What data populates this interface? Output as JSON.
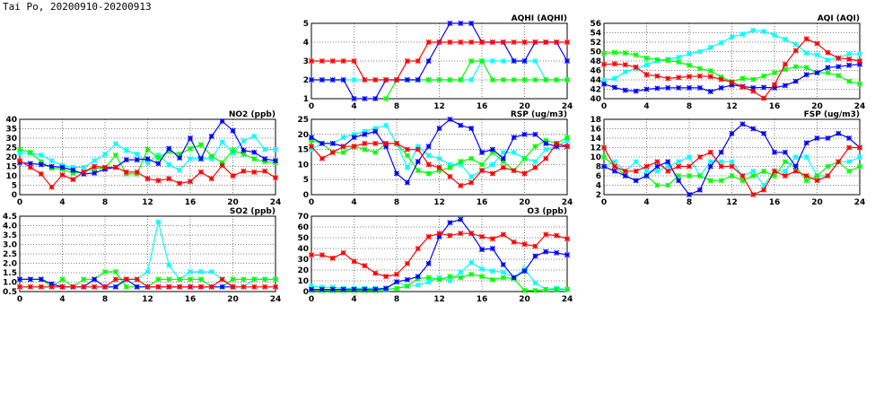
{
  "page_title": "Tai Po, 20200910-20200913",
  "colors": {
    "red": "#ff0000",
    "blue": "#0000ff",
    "green": "#00ff00",
    "cyan": "#00ffff"
  },
  "chart_data": [
    {
      "id": "aqhi",
      "type": "line",
      "title": "AQHI (AQHI)",
      "xlim": [
        0,
        24
      ],
      "xticks": [
        0,
        4,
        8,
        12,
        16,
        20,
        24
      ],
      "ylim": [
        1,
        5
      ],
      "yticks": [
        1,
        2,
        3,
        4,
        5
      ],
      "grid": true,
      "series": [
        {
          "color": "cyan",
          "values": [
            2,
            2,
            2,
            2,
            2,
            2,
            2,
            2,
            2,
            2,
            2,
            2,
            2,
            2,
            2,
            2,
            3,
            3,
            3,
            3,
            3,
            3,
            2,
            2,
            2
          ]
        },
        {
          "color": "green",
          "values": [
            null,
            null,
            null,
            null,
            null,
            null,
            null,
            1,
            2,
            2,
            2,
            2,
            2,
            2,
            2,
            3,
            3,
            2,
            2,
            2,
            2,
            2,
            2,
            2,
            2
          ]
        },
        {
          "color": "blue",
          "values": [
            2,
            2,
            2,
            2,
            1,
            1,
            1,
            2,
            2,
            2,
            2,
            3,
            4,
            5,
            5,
            5,
            4,
            4,
            4,
            3,
            3,
            4,
            4,
            4,
            3
          ]
        },
        {
          "color": "red",
          "values": [
            3,
            3,
            3,
            3,
            3,
            2,
            2,
            2,
            2,
            3,
            3,
            4,
            4,
            4,
            4,
            4,
            4,
            4,
            4,
            4,
            4,
            4,
            4,
            4,
            4
          ]
        }
      ]
    },
    {
      "id": "aqi",
      "type": "line",
      "title": "AQI (AQI)",
      "xlim": [
        0,
        24
      ],
      "xticks": [
        0,
        4,
        8,
        12,
        16,
        20,
        24
      ],
      "ylim": [
        40,
        56
      ],
      "yticks": [
        40,
        42,
        44,
        46,
        48,
        50,
        52,
        54,
        56
      ],
      "grid": true,
      "series": [
        {
          "color": "cyan",
          "values": [
            43.9,
            44.3,
            45.7,
            46.4,
            47.2,
            48.0,
            48.4,
            48.8,
            49.5,
            50.0,
            50.9,
            51.9,
            53.1,
            53.7,
            54.5,
            54.3,
            53.5,
            52.6,
            51.5,
            49.7,
            49.3,
            48.2,
            48.7,
            49.5,
            49.5
          ]
        },
        {
          "color": "green",
          "values": [
            49.6,
            49.8,
            49.7,
            49.3,
            48.6,
            48.3,
            48.1,
            47.8,
            47.1,
            46.4,
            45.9,
            44.6,
            43.6,
            44.3,
            44.1,
            44.8,
            45.5,
            46.2,
            46.8,
            46.6,
            45.5,
            45.5,
            44.9,
            43.7,
            43.1
          ]
        },
        {
          "color": "blue",
          "values": [
            43.1,
            42.4,
            41.8,
            41.6,
            42.0,
            42.2,
            42.3,
            42.3,
            42.3,
            42.3,
            41.5,
            42.3,
            42.9,
            42.6,
            42.3,
            42.4,
            42.3,
            42.8,
            43.7,
            45.1,
            45.5,
            46.6,
            46.8,
            47.1,
            47.3
          ]
        },
        {
          "color": "red",
          "values": [
            47.3,
            47.4,
            47.2,
            46.7,
            45.1,
            44.8,
            44.3,
            44.5,
            44.7,
            44.8,
            44.7,
            44.1,
            43.5,
            42.5,
            41.6,
            40.1,
            43.0,
            47.3,
            50.2,
            52.7,
            51.7,
            49.8,
            48.6,
            48.4,
            48.0
          ]
        }
      ]
    },
    {
      "id": "no2",
      "type": "line",
      "title": "NO2 (ppb)",
      "xlim": [
        0,
        24
      ],
      "xticks": [
        0,
        4,
        8,
        12,
        16,
        20,
        24
      ],
      "ylim": [
        0,
        40
      ],
      "yticks": [
        0,
        5,
        10,
        15,
        20,
        25,
        30,
        35,
        40
      ],
      "grid": true,
      "series": [
        {
          "color": "cyan",
          "values": [
            22,
            22,
            21,
            18,
            15.5,
            14.5,
            14.5,
            18,
            21.5,
            27,
            23.5,
            21.5,
            17,
            21,
            16,
            13,
            19,
            19.5,
            19,
            28,
            22,
            28.5,
            31,
            24,
            24
          ]
        },
        {
          "color": "green",
          "values": [
            24,
            22.5,
            17.5,
            14,
            13.5,
            11.5,
            12,
            14,
            14,
            21,
            11,
            11,
            24,
            19.5,
            23,
            21.5,
            24.5,
            26.5,
            20.5,
            17,
            23.5,
            21.5,
            19,
            17.5,
            17
          ]
        },
        {
          "color": "blue",
          "values": [
            17,
            16.5,
            16,
            15,
            14.5,
            13,
            11,
            11.5,
            13.5,
            14.5,
            18.5,
            18.5,
            19,
            16.5,
            24.5,
            19.5,
            30,
            19,
            31,
            39,
            34,
            23.5,
            22.5,
            19,
            18
          ]
        },
        {
          "color": "red",
          "values": [
            18,
            14.5,
            11,
            4,
            10.5,
            8,
            12,
            15,
            14.5,
            14.5,
            12,
            12,
            8.5,
            7.5,
            8.5,
            6,
            7,
            12,
            8.5,
            15.5,
            10,
            12.5,
            12,
            12.5,
            9
          ]
        }
      ]
    },
    {
      "id": "rsp",
      "type": "line",
      "title": "RSP (ug/m3)",
      "xlim": [
        0,
        24
      ],
      "xticks": [
        0,
        4,
        8,
        12,
        16,
        20,
        24
      ],
      "ylim": [
        0,
        25
      ],
      "yticks": [
        0,
        5,
        10,
        15,
        20,
        25
      ],
      "grid": true,
      "series": [
        {
          "color": "cyan",
          "values": [
            15,
            17,
            17,
            19,
            20,
            21,
            22,
            23,
            17,
            9,
            16,
            13,
            12,
            10,
            10,
            6,
            8,
            10,
            14,
            14,
            12,
            11,
            15,
            16,
            18
          ]
        },
        {
          "color": "green",
          "values": [
            18,
            17,
            14,
            14,
            16,
            15,
            14,
            17,
            17,
            13,
            8,
            7,
            8,
            9,
            11,
            12,
            10,
            14,
            11,
            8,
            12,
            16,
            18,
            17,
            19
          ]
        },
        {
          "color": "blue",
          "values": [
            19,
            17,
            17,
            16,
            19,
            20,
            21,
            16,
            7,
            4,
            11,
            16,
            22,
            25,
            23,
            22,
            14,
            15,
            12,
            19,
            20,
            20,
            17,
            16,
            16
          ]
        },
        {
          "color": "red",
          "values": [
            16,
            12,
            14,
            16,
            16,
            17,
            17,
            17,
            17,
            15,
            15,
            10,
            9,
            6,
            3,
            4,
            8,
            7,
            9,
            8,
            7,
            9,
            12,
            17,
            16
          ]
        }
      ]
    },
    {
      "id": "fsp",
      "type": "line",
      "title": "FSP (ug/m3)",
      "xlim": [
        0,
        24
      ],
      "xticks": [
        0,
        4,
        8,
        12,
        16,
        20,
        24
      ],
      "ylim": [
        2,
        18
      ],
      "yticks": [
        2,
        4,
        6,
        8,
        10,
        12,
        14,
        16,
        18
      ],
      "grid": true,
      "series": [
        {
          "color": "cyan",
          "values": [
            8,
            9,
            7,
            9,
            7,
            7,
            8,
            9,
            10,
            6,
            9,
            9,
            9,
            6,
            7,
            4,
            7,
            7,
            10,
            10,
            6,
            6,
            9,
            9,
            10
          ]
        },
        {
          "color": "green",
          "values": [
            10,
            8,
            6,
            5,
            6,
            4,
            4,
            6,
            6,
            6,
            5,
            5,
            6,
            5,
            6,
            7,
            6,
            9,
            8,
            5,
            6,
            8,
            9,
            7,
            8
          ]
        },
        {
          "color": "blue",
          "values": [
            8,
            7,
            6,
            5,
            6,
            8,
            9,
            5,
            2,
            3,
            8,
            11,
            15,
            17,
            16,
            15,
            11,
            11,
            8,
            13,
            14,
            14,
            15,
            14,
            12
          ]
        },
        {
          "color": "red",
          "values": [
            12,
            8,
            7,
            7,
            8,
            9,
            7,
            8,
            8,
            10,
            11,
            8,
            8,
            6,
            2,
            3,
            7,
            6,
            7,
            6,
            5,
            6,
            9,
            12,
            12
          ]
        }
      ]
    },
    {
      "id": "so2",
      "type": "line",
      "title": "SO2 (ppb)",
      "xlim": [
        0,
        24
      ],
      "xticks": [
        0,
        4,
        8,
        12,
        16,
        20,
        24
      ],
      "ylim": [
        0.5,
        4.5
      ],
      "yticks": [
        0.5,
        1.0,
        1.5,
        2.0,
        2.5,
        3.0,
        3.5,
        4.0,
        4.5
      ],
      "grid": true,
      "series": [
        {
          "color": "cyan",
          "values": [
            0.75,
            0.75,
            0.75,
            0.75,
            0.75,
            0.75,
            0.75,
            0.75,
            0.75,
            0.75,
            1.15,
            1.15,
            1.55,
            4.2,
            1.9,
            1.15,
            1.55,
            1.55,
            1.55,
            1.15,
            0.75,
            0.75,
            1.15,
            1.15,
            1.15
          ]
        },
        {
          "color": "green",
          "values": [
            1.15,
            1.15,
            1.15,
            0.75,
            1.15,
            0.75,
            1.15,
            1.15,
            1.55,
            1.55,
            0.75,
            0.75,
            0.75,
            1.15,
            1.15,
            1.15,
            1.15,
            1.15,
            0.75,
            0.75,
            1.15,
            1.15,
            1.15,
            1.15,
            1.15
          ]
        },
        {
          "color": "blue",
          "values": [
            1.15,
            1.15,
            1.15,
            0.9,
            0.75,
            0.75,
            0.75,
            1.15,
            0.75,
            0.75,
            1.15,
            0.75,
            0.75,
            0.75,
            0.75,
            0.75,
            0.75,
            0.75,
            0.75,
            0.75,
            0.75,
            null,
            null,
            null,
            null
          ]
        },
        {
          "color": "red",
          "values": [
            0.75,
            0.75,
            0.75,
            0.75,
            0.75,
            0.75,
            0.75,
            0.75,
            0.75,
            1.15,
            1.15,
            1.15,
            0.75,
            0.75,
            0.75,
            0.75,
            0.75,
            0.75,
            0.75,
            1.15,
            0.75,
            0.75,
            0.75,
            0.75,
            0.75
          ]
        }
      ]
    },
    {
      "id": "o3",
      "type": "line",
      "title": "O3 (ppb)",
      "xlim": [
        0,
        24
      ],
      "xticks": [
        0,
        4,
        8,
        12,
        16,
        20,
        24
      ],
      "ylim": [
        0,
        70
      ],
      "yticks": [
        0,
        10,
        20,
        30,
        40,
        50,
        60,
        70
      ],
      "grid": true,
      "series": [
        {
          "color": "cyan",
          "values": [
            5,
            4,
            4,
            3,
            3,
            3,
            3,
            3,
            9,
            5,
            6,
            9,
            13,
            10,
            18,
            27,
            21,
            19,
            18,
            13,
            21,
            8,
            2,
            3,
            2
          ]
        },
        {
          "color": "green",
          "values": [
            1,
            1,
            1,
            1,
            1,
            1,
            1,
            2,
            3,
            5,
            12,
            13,
            11,
            14,
            13,
            16,
            14,
            11,
            13,
            12,
            1,
            1,
            2,
            2,
            2
          ]
        },
        {
          "color": "blue",
          "values": [
            2,
            2,
            2,
            2,
            2,
            2,
            2,
            3,
            9,
            11,
            14,
            26,
            51,
            64,
            67,
            54,
            39,
            40,
            25,
            13,
            19,
            33,
            37,
            36,
            34
          ]
        },
        {
          "color": "red",
          "values": [
            34,
            34,
            31,
            36,
            28,
            24,
            17,
            14,
            16,
            26,
            40,
            51,
            54,
            52,
            54,
            54,
            51,
            49,
            53,
            46,
            44,
            42,
            53,
            52,
            49
          ]
        }
      ]
    }
  ]
}
